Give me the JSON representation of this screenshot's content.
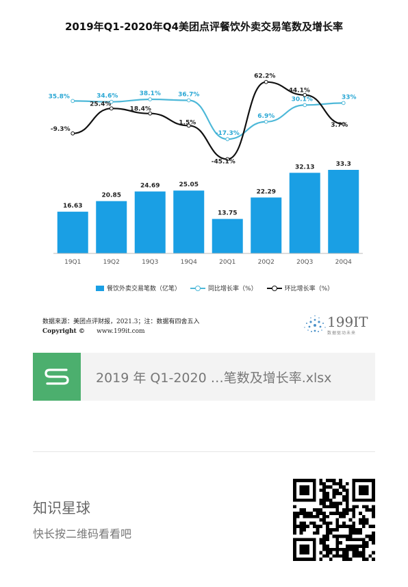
{
  "title": "2019年Q1-2020年Q4美团点评餐饮外卖交易笔数及增长率",
  "chart_data": {
    "type": "bar+line",
    "categories": [
      "19Q1",
      "19Q2",
      "19Q3",
      "19Q4",
      "20Q1",
      "20Q2",
      "20Q3",
      "20Q4"
    ],
    "series": [
      {
        "name": "餐饮外卖交易笔数（亿笔）",
        "type": "bar",
        "values": [
          16.63,
          20.85,
          24.69,
          25.05,
          13.75,
          22.29,
          32.13,
          33.3
        ],
        "labels": [
          "16.63",
          "20.85",
          "24.69",
          "25.05",
          "13.75",
          "22.29",
          "32.13",
          "33.3"
        ],
        "color": "#1a9fe4"
      },
      {
        "name": "同比增长率（%）",
        "type": "line",
        "values": [
          35.8,
          34.6,
          38.1,
          36.7,
          -17.3,
          6.9,
          30.1,
          33
        ],
        "labels": [
          "35.8%",
          "34.6%",
          "38.1%",
          "36.7%",
          "-17.3%",
          "6.9%",
          "30.1%",
          "33%"
        ],
        "color": "#4db8d8"
      },
      {
        "name": "环比增长率（%）",
        "type": "line",
        "values": [
          -9.3,
          25.4,
          18.4,
          1.5,
          -45.1,
          62.2,
          44.1,
          3.7
        ],
        "labels": [
          "-9.3%",
          "25.4%",
          "18.4%",
          "1.5%",
          "-45.1%",
          "62.2%",
          "44.1%",
          "3.7%"
        ],
        "color": "#111111"
      }
    ],
    "legend_position": "bottom",
    "grid": false
  },
  "legend": {
    "bar": "餐饮外卖交易笔数（亿笔）",
    "yoy": "同比增长率（%）",
    "mom": "环比增长率（%）"
  },
  "source": "数据来源：美团点评财报，2021.3；注：数据有四舍五入",
  "copyright_label": "Copyright ©",
  "copyright_site": "www.199it.com",
  "logo": {
    "text": "199IT",
    "sub": "数据驱动未来"
  },
  "file": {
    "icon": "s-file-icon",
    "name": "2019 年 Q1-2020 …笔数及增长率.xlsx",
    "icon_color": "#4caf6e"
  },
  "planet": {
    "title": "知识星球",
    "subtitle": "快长按二维码看看吧"
  },
  "qr": {
    "icon": "qr-code-icon"
  }
}
